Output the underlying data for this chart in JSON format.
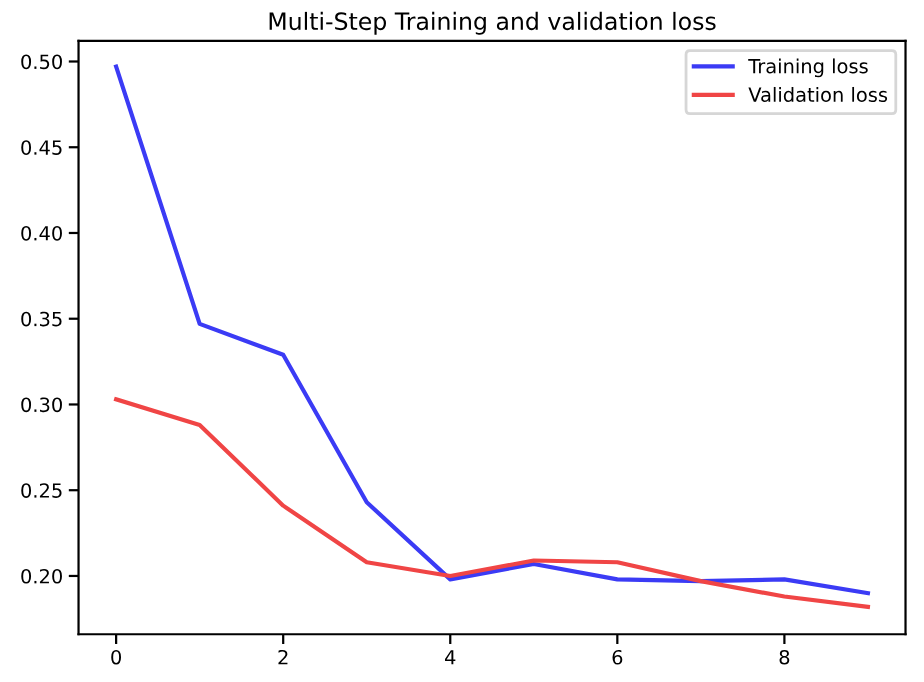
{
  "chart_data": {
    "type": "line",
    "title": "Multi-Step Training and validation loss",
    "x": [
      0,
      1,
      2,
      3,
      4,
      5,
      6,
      7,
      8,
      9
    ],
    "series": [
      {
        "name": "Training loss",
        "color": "#3b3bf5",
        "values": [
          0.497,
          0.347,
          0.329,
          0.243,
          0.198,
          0.207,
          0.198,
          0.197,
          0.198,
          0.19
        ]
      },
      {
        "name": "Validation loss",
        "color": "#f04545",
        "values": [
          0.303,
          0.288,
          0.241,
          0.208,
          0.2,
          0.209,
          0.208,
          0.197,
          0.188,
          0.182
        ]
      }
    ],
    "xlim": [
      -0.45,
      9.45
    ],
    "ylim": [
      0.166,
      0.512
    ],
    "xticks": [
      0,
      2,
      4,
      6,
      8
    ],
    "yticks": [
      {
        "value": 0.2,
        "label": "0.20"
      },
      {
        "value": 0.25,
        "label": "0.25"
      },
      {
        "value": 0.3,
        "label": "0.30"
      },
      {
        "value": 0.35,
        "label": "0.35"
      },
      {
        "value": 0.4,
        "label": "0.40"
      },
      {
        "value": 0.45,
        "label": "0.45"
      },
      {
        "value": 0.5,
        "label": "0.50"
      }
    ],
    "grid": false,
    "legend": "top right",
    "marker": "none",
    "line_style": "solid"
  }
}
